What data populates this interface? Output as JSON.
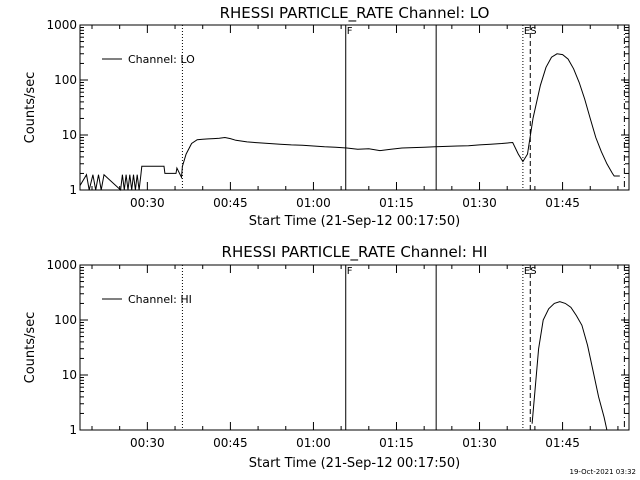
{
  "footer_timestamp": "19-Oct-2021 03:32",
  "chart_data": [
    {
      "type": "line",
      "title": "RHESSI PARTICLE_RATE Channel: LO",
      "xlabel": "Start Time (21-Sep-12 00:17:50)",
      "ylabel": "Counts/sec",
      "y_scale": "log",
      "ylim": [
        1,
        1000
      ],
      "xlim": [
        "00:17:50",
        "01:57:00"
      ],
      "x_ticks": [
        "00:30",
        "00:45",
        "01:00",
        "01:15",
        "01:30",
        "01:45"
      ],
      "y_ticks": [
        "1",
        "10",
        "100",
        "1000"
      ],
      "markers": [
        {
          "time": "00:36:20",
          "style": "dotted",
          "label": ""
        },
        {
          "time": "01:05:50",
          "style": "solid",
          "label": "F"
        },
        {
          "time": "01:22:10",
          "style": "solid",
          "label": ""
        },
        {
          "time": "01:37:50",
          "style": "dotted",
          "label": "ES"
        },
        {
          "time": "01:39:10",
          "style": "dashed",
          "label": ""
        },
        {
          "time": "01:56:10",
          "style": "dashdot",
          "label": ""
        }
      ],
      "series": [
        {
          "name": "Channel: LO",
          "x": [
            "00:17:50",
            "00:19:00",
            "00:19:30",
            "00:20:10",
            "00:20:40",
            "00:21:10",
            "00:21:40",
            "00:22:10",
            "00:25:10",
            "00:25:30",
            "00:25:50",
            "00:26:10",
            "00:26:30",
            "00:26:50",
            "00:27:10",
            "00:27:30",
            "00:27:50",
            "00:28:10",
            "00:28:30",
            "00:28:50",
            "00:29:00",
            "00:33:00",
            "00:33:10",
            "00:35:10",
            "00:35:20",
            "00:36:10",
            "00:36:20",
            "00:37:00",
            "00:38:00",
            "00:39:00",
            "00:40:00",
            "00:41:00",
            "00:42:00",
            "00:43:00",
            "00:44:00",
            "00:45:00",
            "00:46:00",
            "00:48:00",
            "00:50:00",
            "00:52:00",
            "00:54:00",
            "00:56:00",
            "00:58:00",
            "01:00:00",
            "01:02:00",
            "01:04:00",
            "01:06:00",
            "01:08:00",
            "01:10:00",
            "01:12:00",
            "01:14:00",
            "01:16:00",
            "01:18:00",
            "01:20:00",
            "01:22:00",
            "01:24:00",
            "01:26:00",
            "01:28:00",
            "01:30:00",
            "01:32:00",
            "01:34:00",
            "01:36:00",
            "01:37:00",
            "01:37:50",
            "01:38:40",
            "01:39:40",
            "01:41:00",
            "01:42:00",
            "01:43:00",
            "01:44:00",
            "01:45:00",
            "01:46:00",
            "01:47:00",
            "01:48:00",
            "01:49:00",
            "01:50:00",
            "01:51:00",
            "01:52:00",
            "01:53:00",
            "01:54:00",
            "01:54:20",
            "01:55:20"
          ],
          "values": [
            1.2,
            1.9,
            1.0,
            1.9,
            1.0,
            1.9,
            1.0,
            1.9,
            1.0,
            1.9,
            1.0,
            1.9,
            1.0,
            1.9,
            1.0,
            1.9,
            1.0,
            1.9,
            1.0,
            1.9,
            2.7,
            2.7,
            2.0,
            2.0,
            2.5,
            1.7,
            2.7,
            4.5,
            7.0,
            8.2,
            8.4,
            8.5,
            8.6,
            8.7,
            9.0,
            8.6,
            8.0,
            7.5,
            7.2,
            7.0,
            6.8,
            6.6,
            6.5,
            6.3,
            6.1,
            6.0,
            5.8,
            5.5,
            5.6,
            5.2,
            5.5,
            5.8,
            5.9,
            6.0,
            6.1,
            6.2,
            6.3,
            6.4,
            6.6,
            6.8,
            7.0,
            7.3,
            4.5,
            3.3,
            4.5,
            20,
            80,
            170,
            260,
            300,
            290,
            240,
            160,
            90,
            45,
            20,
            9,
            5,
            3,
            2,
            1.8,
            1.8
          ]
        }
      ]
    },
    {
      "type": "line",
      "title": "RHESSI PARTICLE_RATE Channel: HI",
      "xlabel": "Start Time (21-Sep-12 00:17:50)",
      "ylabel": "Counts/sec",
      "y_scale": "log",
      "ylim": [
        1,
        1000
      ],
      "xlim": [
        "00:17:50",
        "01:57:00"
      ],
      "x_ticks": [
        "00:30",
        "00:45",
        "01:00",
        "01:15",
        "01:30",
        "01:45"
      ],
      "y_ticks": [
        "1",
        "10",
        "100",
        "1000"
      ],
      "markers": [
        {
          "time": "00:36:20",
          "style": "dotted",
          "label": ""
        },
        {
          "time": "01:05:50",
          "style": "solid",
          "label": "F"
        },
        {
          "time": "01:22:10",
          "style": "solid",
          "label": ""
        },
        {
          "time": "01:37:50",
          "style": "dotted",
          "label": "ES"
        },
        {
          "time": "01:39:10",
          "style": "dashed",
          "label": ""
        },
        {
          "time": "01:56:10",
          "style": "dashdot",
          "label": ""
        }
      ],
      "series": [
        {
          "name": "Channel: HI",
          "x": [
            "01:39:30",
            "01:40:00",
            "01:40:40",
            "01:41:30",
            "01:42:30",
            "01:43:30",
            "01:44:30",
            "01:45:30",
            "01:46:30",
            "01:47:30",
            "01:48:30",
            "01:49:30",
            "01:50:30",
            "01:51:30",
            "01:52:30",
            "01:53:00"
          ],
          "values": [
            1.3,
            5,
            30,
            100,
            160,
            200,
            215,
            200,
            170,
            120,
            80,
            35,
            12,
            4,
            1.7,
            1.0
          ]
        }
      ]
    }
  ]
}
